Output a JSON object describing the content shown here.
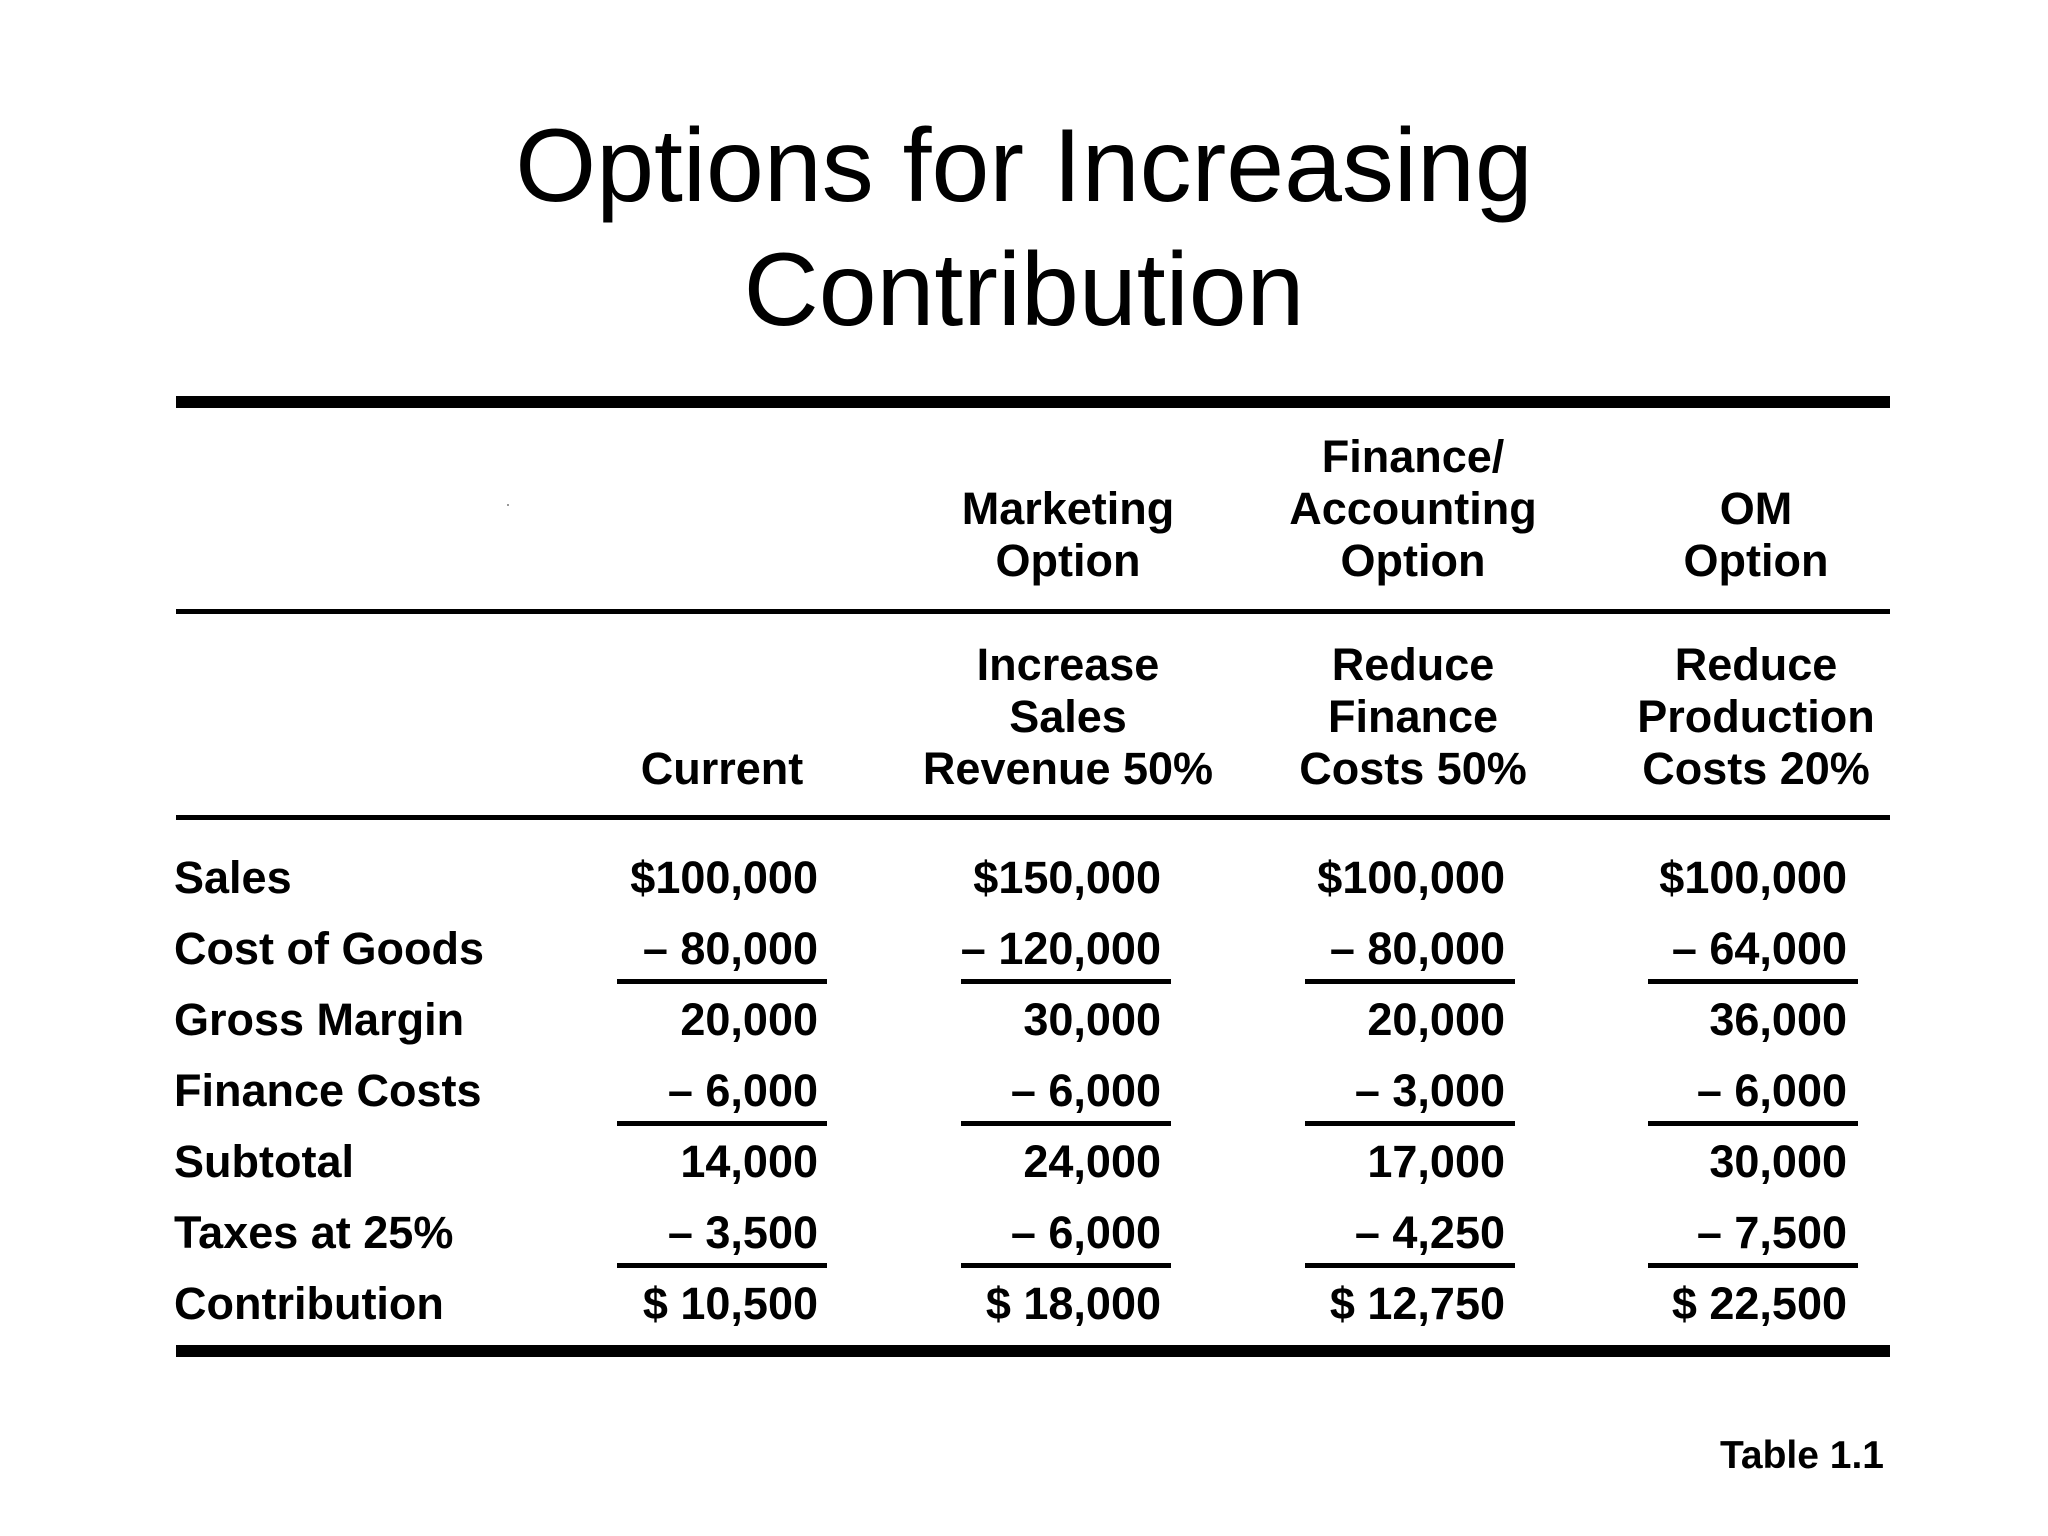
{
  "title": {
    "line1": "Options for Increasing",
    "line2": "Contribution"
  },
  "option_headers": [
    {
      "lines": [
        "",
        "",
        ""
      ]
    },
    {
      "lines": [
        "",
        "Marketing",
        "Option"
      ]
    },
    {
      "lines": [
        "Finance/",
        "Accounting",
        "Option"
      ]
    },
    {
      "lines": [
        "",
        "OM",
        "Option"
      ]
    }
  ],
  "scenario_headers": [
    {
      "lines": [
        "",
        "",
        "Current"
      ]
    },
    {
      "lines": [
        "Increase",
        "Sales",
        "Revenue 50%"
      ]
    },
    {
      "lines": [
        "Reduce",
        "Finance",
        "Costs 50%"
      ]
    },
    {
      "lines": [
        "Reduce",
        "Production",
        "Costs 20%"
      ]
    }
  ],
  "rows": [
    {
      "label": "Sales",
      "values": [
        "$100,000",
        "$150,000",
        "$100,000",
        "$100,000"
      ]
    },
    {
      "label": "Cost of Goods",
      "values": [
        "– 80,000",
        "– 120,000",
        "– 80,000",
        "– 64,000"
      ]
    },
    {
      "label": "Gross Margin",
      "values": [
        "20,000",
        "30,000",
        "20,000",
        "36,000"
      ]
    },
    {
      "label": "Finance Costs",
      "values": [
        "– 6,000",
        "– 6,000",
        "– 3,000",
        "– 6,000"
      ]
    },
    {
      "label": "Subtotal",
      "values": [
        "14,000",
        "24,000",
        "17,000",
        "30,000"
      ]
    },
    {
      "label": "Taxes at 25%",
      "values": [
        "– 3,500",
        "– 6,000",
        "– 4,250",
        "– 7,500"
      ]
    },
    {
      "label": "Contribution",
      "values": [
        "$ 10,500",
        "$ 18,000",
        "$ 12,750",
        "$ 22,500"
      ]
    }
  ],
  "caption": "Table 1.1"
}
